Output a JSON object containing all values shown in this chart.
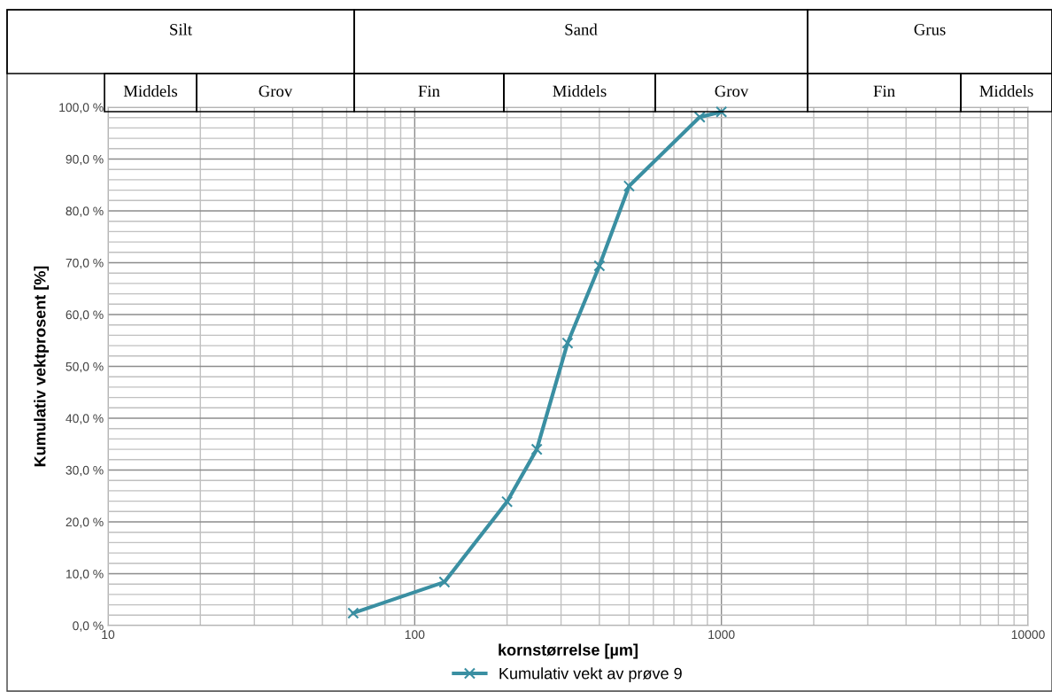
{
  "chart_data": {
    "type": "line",
    "xlabel": "kornstørrelse [µm]",
    "ylabel": "Kumulativ vektprosent [%]",
    "x": [
      63,
      125,
      200,
      250,
      315,
      400,
      500,
      850,
      1000
    ],
    "series": [
      {
        "name": "Kumulativ vekt av prøve 9",
        "color": "#3a8fa2",
        "values": [
          2.4,
          8.4,
          23.9,
          34.0,
          54.5,
          69.4,
          84.8,
          98.1,
          99.1
        ]
      }
    ],
    "log": "x",
    "xlim": [
      10,
      10000
    ],
    "xticks": [
      10,
      100,
      1000,
      10000
    ],
    "ylim": [
      0,
      100
    ],
    "yticks": [
      {
        "value": 0,
        "label": "0,0 %"
      },
      {
        "value": 10,
        "label": "10,0 %"
      },
      {
        "value": 20,
        "label": "20,0 %"
      },
      {
        "value": 30,
        "label": "30,0 %"
      },
      {
        "value": 40,
        "label": "40,0 %"
      },
      {
        "value": 50,
        "label": "50,0 %"
      },
      {
        "value": 60,
        "label": "60,0 %"
      },
      {
        "value": 70,
        "label": "70,0 %"
      },
      {
        "value": 80,
        "label": "80,0 %"
      },
      {
        "value": 90,
        "label": "90,0 %"
      },
      {
        "value": 100,
        "label": "100,0 %"
      }
    ],
    "grid": true,
    "marker": "cross",
    "line_style": "solid",
    "legend": "bottom",
    "annotations": [
      "Silt",
      "Sand",
      "Grus",
      "Middels",
      "Grov",
      "Fin",
      "Middels",
      "Grov",
      "Fin",
      "Middels"
    ]
  }
}
